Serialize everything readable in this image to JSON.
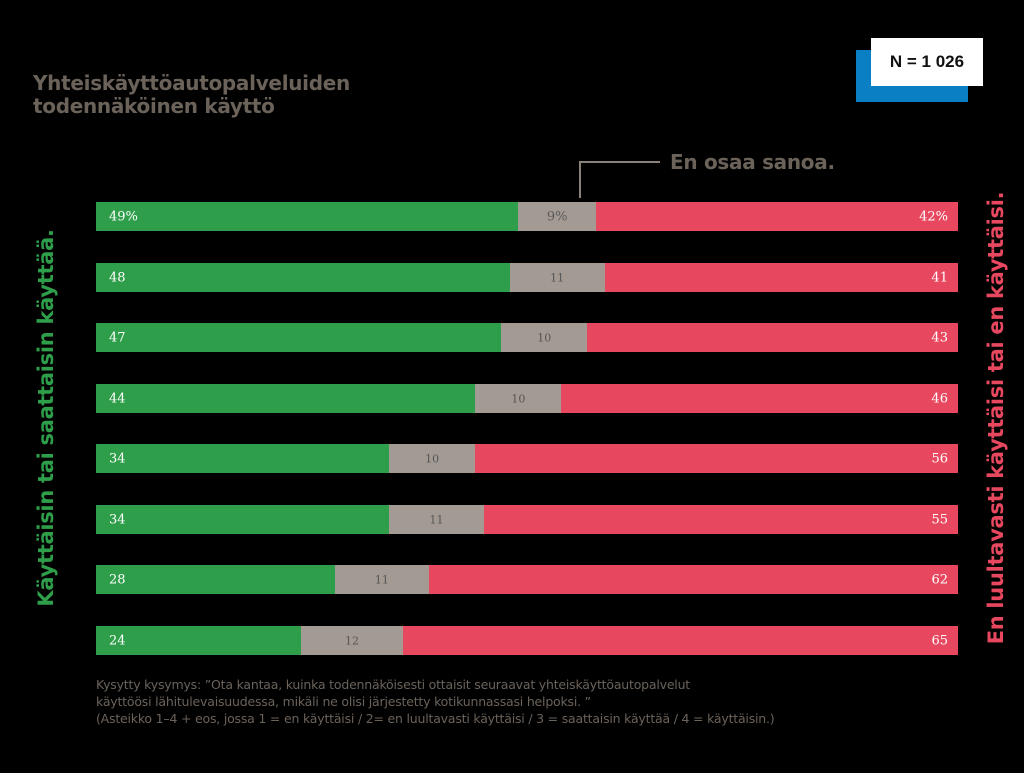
{
  "title_lines": [
    "Yhteiskäyttöautopalveluiden",
    "todennäköinen käyttö"
  ],
  "n_label": "N = 1 026",
  "eos_label": "En osaa sanoa.",
  "left_axis_label": "Käyttäisin tai saattaisin käyttää.",
  "right_axis_label": "En luultavasti käyttäisi tai en käyttäisi.",
  "colors": {
    "yes": "#2e9e4a",
    "eos": "#a39a93",
    "no": "#e8485f",
    "text_brown": "#6b625a",
    "n_shadow": "#0a7fc4"
  },
  "chart_data": {
    "type": "bar",
    "orientation": "horizontal-stacked-100",
    "series": [
      {
        "name": "Käyttäisin tai saattaisin käyttää.",
        "values": [
          49,
          48,
          47,
          44,
          34,
          34,
          28,
          24
        ]
      },
      {
        "name": "En osaa sanoa.",
        "values": [
          9,
          11,
          10,
          10,
          10,
          11,
          11,
          12
        ]
      },
      {
        "name": "En luultavasti käyttäisi tai en käyttäisi.",
        "values": [
          42,
          41,
          43,
          46,
          56,
          55,
          62,
          65
        ]
      }
    ],
    "labels": [
      [
        "49%",
        "9%",
        "42%"
      ],
      [
        "48",
        "11",
        "41"
      ],
      [
        "47",
        "10",
        "43"
      ],
      [
        "44",
        "10",
        "46"
      ],
      [
        "34",
        "10",
        "56"
      ],
      [
        "34",
        "11",
        "55"
      ],
      [
        "28",
        "11",
        "62"
      ],
      [
        "24",
        "12",
        "65"
      ]
    ],
    "xlim": [
      0,
      100
    ]
  },
  "footnote_lines": [
    "Kysytty kysymys: ”Ota kantaa, kuinka todennäköisesti ottaisit seuraavat yhteiskäyttöautopalvelut",
    "käyttöösi lähitulevaisuudessa, mikäli ne olisi järjestetty kotikunnassasi helpoksi. ”",
    "(Asteikko 1–4 + eos, jossa 1 = en käyttäisi / 2= en luultavasti käyttäisi / 3 = saattaisin käyttää / 4 = käyttäisin.)"
  ]
}
